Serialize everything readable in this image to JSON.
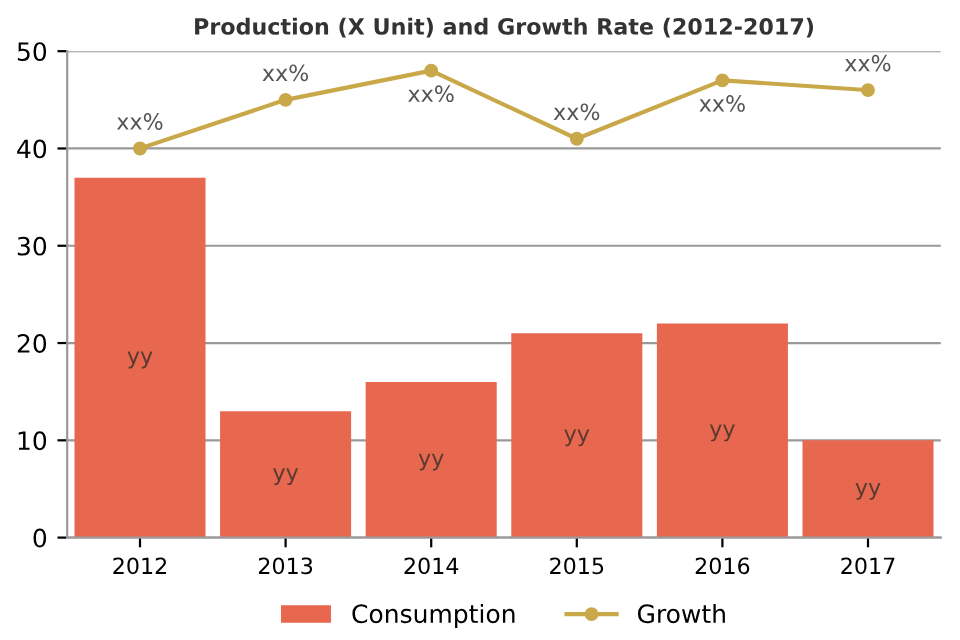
{
  "chart_data": {
    "type": "bar",
    "title": "Production (X Unit) and Growth Rate (2012-2017)",
    "categories": [
      "2012",
      "2013",
      "2014",
      "2015",
      "2016",
      "2017"
    ],
    "series": [
      {
        "name": "Consumption",
        "color": "#e8684f",
        "values": [
          37,
          13,
          16,
          21,
          22,
          10
        ],
        "value_labels": [
          "yy",
          "yy",
          "yy",
          "yy",
          "yy",
          "yy"
        ]
      },
      {
        "name": "Growth",
        "type": "line",
        "color": "#c9a84a",
        "marker": "circle",
        "values": [
          40,
          45,
          48,
          41,
          47,
          46
        ],
        "value_labels": [
          "xx%",
          "xx%",
          "xx%",
          "xx%",
          "xx%",
          "xx%"
        ]
      }
    ],
    "ylim": [
      0,
      50
    ],
    "yticks": [
      0,
      10,
      20,
      30,
      40,
      50
    ],
    "grid": "y",
    "legend": "bottom"
  }
}
